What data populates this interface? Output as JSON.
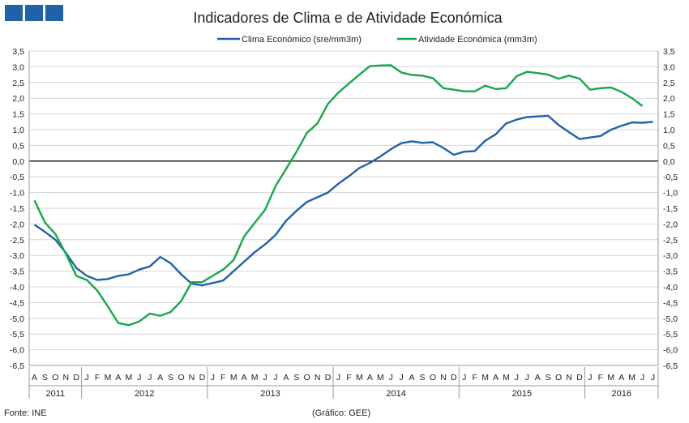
{
  "chart_data": {
    "type": "line",
    "title": "Indicadores de Clima e de Atividade Económica",
    "ylim": [
      -6.5,
      3.5
    ],
    "y_ticks": [
      "3,5",
      "3,0",
      "2,5",
      "2,0",
      "1,5",
      "1,0",
      "0,5",
      "0,0",
      "-0,5",
      "-1,0",
      "-1,5",
      "-2,0",
      "-2,5",
      "-3,0",
      "-3,5",
      "-4,0",
      "-4,5",
      "-5,0",
      "-5,5",
      "-6,0",
      "-6,5"
    ],
    "months": [
      "A",
      "S",
      "O",
      "N",
      "D",
      "J",
      "F",
      "M",
      "A",
      "M",
      "J",
      "J",
      "A",
      "S",
      "O",
      "N",
      "D",
      "J",
      "F",
      "M",
      "A",
      "M",
      "J",
      "J",
      "A",
      "S",
      "O",
      "N",
      "D",
      "J",
      "F",
      "M",
      "A",
      "M",
      "J",
      "J",
      "A",
      "S",
      "O",
      "N",
      "D",
      "J",
      "F",
      "M",
      "A",
      "M",
      "J",
      "J",
      "A",
      "S",
      "O",
      "N",
      "D",
      "J",
      "F",
      "M",
      "A",
      "M",
      "J",
      "J"
    ],
    "years": [
      {
        "label": "2011",
        "start": 0,
        "end": 5
      },
      {
        "label": "2012",
        "start": 5,
        "end": 17
      },
      {
        "label": "2013",
        "start": 17,
        "end": 29
      },
      {
        "label": "2014",
        "start": 29,
        "end": 41
      },
      {
        "label": "2015",
        "start": 41,
        "end": 53
      },
      {
        "label": "2016",
        "start": 53,
        "end": 60
      }
    ],
    "series": [
      {
        "name": "Clima Económico (sre/mm3m)",
        "color": "#1f62a8",
        "values": [
          -2.02,
          -2.25,
          -2.5,
          -2.92,
          -3.4,
          -3.65,
          -3.78,
          -3.75,
          -3.65,
          -3.6,
          -3.45,
          -3.35,
          -3.05,
          -3.25,
          -3.6,
          -3.9,
          -3.95,
          -3.88,
          -3.8,
          -3.5,
          -3.2,
          -2.9,
          -2.65,
          -2.35,
          -1.9,
          -1.58,
          -1.3,
          -1.15,
          -1.0,
          -0.72,
          -0.48,
          -0.22,
          -0.06,
          0.15,
          0.38,
          0.57,
          0.63,
          0.58,
          0.6,
          0.42,
          0.2,
          0.3,
          0.32,
          0.65,
          0.85,
          1.2,
          1.32,
          1.4,
          1.42,
          1.44,
          1.15,
          0.92,
          0.7,
          0.75,
          0.8,
          1.0,
          1.12,
          1.23,
          1.22,
          1.25
        ]
      },
      {
        "name": "Atividade Económica (mm3m)",
        "color": "#1aa64b",
        "values": [
          -1.25,
          -1.95,
          -2.32,
          -2.95,
          -3.65,
          -3.78,
          -4.12,
          -4.62,
          -5.15,
          -5.22,
          -5.1,
          -4.85,
          -4.92,
          -4.8,
          -4.45,
          -3.85,
          -3.85,
          -3.65,
          -3.45,
          -3.15,
          -2.4,
          -1.97,
          -1.55,
          -0.8,
          -0.25,
          0.3,
          0.9,
          1.2,
          1.82,
          2.18,
          2.47,
          2.75,
          3.02,
          3.04,
          3.05,
          2.82,
          2.74,
          2.72,
          2.64,
          2.32,
          2.27,
          2.22,
          2.22,
          2.4,
          2.29,
          2.32,
          2.7,
          2.84,
          2.8,
          2.75,
          2.62,
          2.72,
          2.62,
          2.27,
          2.32,
          2.34,
          2.2,
          2.0,
          1.75,
          null
        ]
      }
    ],
    "legend": [
      "Clima Económico (sre/mm3m)",
      "Atividade Económica (mm3m)"
    ],
    "legend_position": "top-center"
  },
  "footer": {
    "source": "Fonte: INE",
    "credit": "(Gráfico: GEE)"
  }
}
